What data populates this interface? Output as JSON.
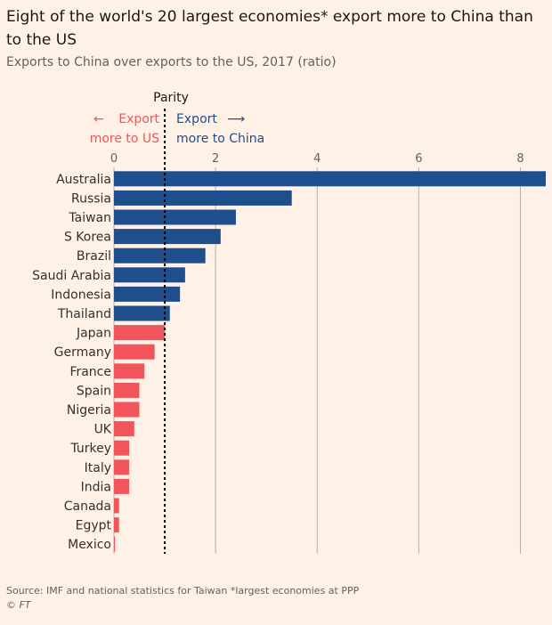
{
  "title": "Eight of the world's 20 largest economies* export more to China than to the US",
  "subtitle": "Exports to China over exports to the US, 2017 (ratio)",
  "source": "Source: IMF and national statistics for Taiwan  *largest economies at PPP",
  "credit": "© FT",
  "colors": {
    "china": "#1E4F8C",
    "us": "#F2545B",
    "parity": "#000000",
    "axis": "#B8B0A8"
  },
  "chart_data": {
    "type": "bar",
    "orientation": "horizontal",
    "xlim": [
      0,
      8.5
    ],
    "ticks": [
      0,
      2,
      4,
      6,
      8
    ],
    "parity_value": 1,
    "annotations": {
      "parity": "Parity",
      "left_line1": "Export",
      "left_line2": "more to US",
      "right_line1": "Export",
      "right_line2": "more to China",
      "left_arrow": "←",
      "right_arrow": "⟶"
    },
    "categories": [
      "Australia",
      "Russia",
      "Taiwan",
      "S Korea",
      "Brazil",
      "Saudi Arabia",
      "Indonesia",
      "Thailand",
      "Japan",
      "Germany",
      "France",
      "Spain",
      "Nigeria",
      "UK",
      "Turkey",
      "Italy",
      "India",
      "Canada",
      "Egypt",
      "Mexico"
    ],
    "values": [
      8.5,
      3.5,
      2.4,
      2.1,
      1.8,
      1.4,
      1.3,
      1.1,
      1.0,
      0.8,
      0.6,
      0.5,
      0.5,
      0.4,
      0.3,
      0.3,
      0.3,
      0.1,
      0.1,
      0.02
    ]
  }
}
